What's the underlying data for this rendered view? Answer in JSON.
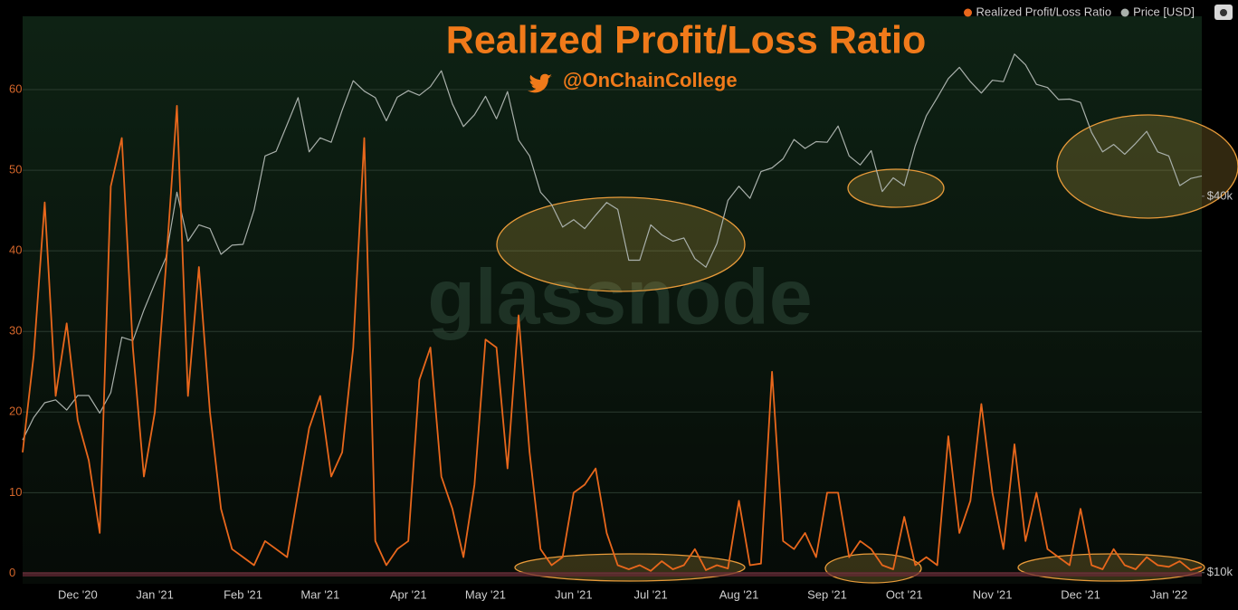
{
  "chart_data": {
    "type": "line",
    "title": "Realized Profit/Loss Ratio",
    "subtitle": "@OnChainCollege",
    "watermark": "glassnode",
    "categories": [
      null,
      null,
      null,
      null,
      null,
      "Dec '20",
      null,
      null,
      null,
      null,
      null,
      null,
      "Jan '21",
      null,
      null,
      null,
      null,
      null,
      null,
      null,
      "Feb '21",
      null,
      null,
      null,
      null,
      null,
      null,
      "Mar '21",
      null,
      null,
      null,
      null,
      null,
      null,
      null,
      "Apr '21",
      null,
      null,
      null,
      null,
      null,
      null,
      "May '21",
      null,
      null,
      null,
      null,
      null,
      null,
      null,
      "Jun '21",
      null,
      null,
      null,
      null,
      null,
      null,
      "Jul '21",
      null,
      null,
      null,
      null,
      null,
      null,
      null,
      "Aug '21",
      null,
      null,
      null,
      null,
      null,
      null,
      null,
      "Sep '21",
      null,
      null,
      null,
      null,
      null,
      null,
      "Oct '21",
      null,
      null,
      null,
      null,
      null,
      null,
      null,
      "Nov '21",
      null,
      null,
      null,
      null,
      null,
      null,
      null,
      "Dec '21",
      null,
      null,
      null,
      null,
      null,
      null,
      null,
      "Jan '22",
      null,
      null,
      null
    ],
    "series": [
      {
        "name": "Realized Profit/Loss Ratio",
        "color": "#e8671c",
        "values": [
          15,
          27,
          46,
          22,
          31,
          19,
          14,
          5,
          48,
          54,
          28,
          12,
          20,
          38,
          58,
          22,
          38,
          20,
          8,
          3,
          2,
          1,
          4,
          3,
          2,
          10,
          18,
          22,
          12,
          15,
          28,
          54,
          4,
          1,
          3,
          4,
          24,
          28,
          12,
          8,
          2,
          11,
          29,
          28,
          13,
          32,
          15,
          3,
          1,
          2,
          10,
          11,
          13,
          5,
          1,
          0.5,
          1,
          0.3,
          1.5,
          0.5,
          1,
          3,
          0.4,
          1,
          0.6,
          9,
          1,
          1.2,
          25,
          4,
          3,
          5,
          2,
          10,
          10,
          2,
          4,
          3,
          1,
          0.5,
          7,
          1,
          2,
          1,
          17,
          5,
          9,
          21,
          10,
          3,
          16,
          4,
          10,
          3,
          2,
          1,
          8,
          1,
          0.5,
          3,
          1,
          0.5,
          2,
          1,
          0.8,
          1.5,
          0.4,
          0.8
        ]
      },
      {
        "name": "Price [USD]",
        "color": "#a9b0ab",
        "axis": "y2",
        "values": [
          16300,
          17700,
          18700,
          18900,
          18200,
          19200,
          19200,
          18000,
          19400,
          23800,
          23500,
          26300,
          29000,
          31900,
          40600,
          33900,
          36000,
          35500,
          32300,
          33400,
          33500,
          38000,
          46400,
          47200,
          52100,
          57500,
          47100,
          49600,
          48800,
          54900,
          61200,
          58900,
          57500,
          52800,
          57600,
          59000,
          58000,
          59900,
          63500,
          56200,
          51700,
          54000,
          57800,
          53200,
          58800,
          49200,
          46400,
          40600,
          38800,
          35700,
          36700,
          35500,
          37300,
          39100,
          38100,
          31600,
          31600,
          36000,
          34700,
          33900,
          34300,
          31800,
          30800,
          33600,
          39400,
          41500,
          39700,
          43800,
          44400,
          45900,
          49300,
          47700,
          48900,
          48800,
          51800,
          46400,
          44900,
          47300,
          40700,
          42800,
          41600,
          48200,
          53800,
          57500,
          61700,
          64300,
          61000,
          58500,
          61300,
          61000,
          67500,
          64900,
          60400,
          59700,
          57100,
          57200,
          56500,
          50600,
          47100,
          48400,
          46700,
          48600,
          50800,
          47100,
          46400,
          41600,
          42700,
          43100
        ]
      }
    ],
    "ylim": [
      -1.3,
      69.1
    ],
    "yticks": [
      0,
      10,
      20,
      30,
      40,
      50,
      60
    ],
    "y2lim": [
      9600,
      77600
    ],
    "y2ticks": [
      {
        "value": 10000,
        "label": "$10k"
      },
      {
        "value": 40000,
        "label": "$40k"
      }
    ],
    "y2log": true,
    "grid": true,
    "legend": "top-right"
  }
}
